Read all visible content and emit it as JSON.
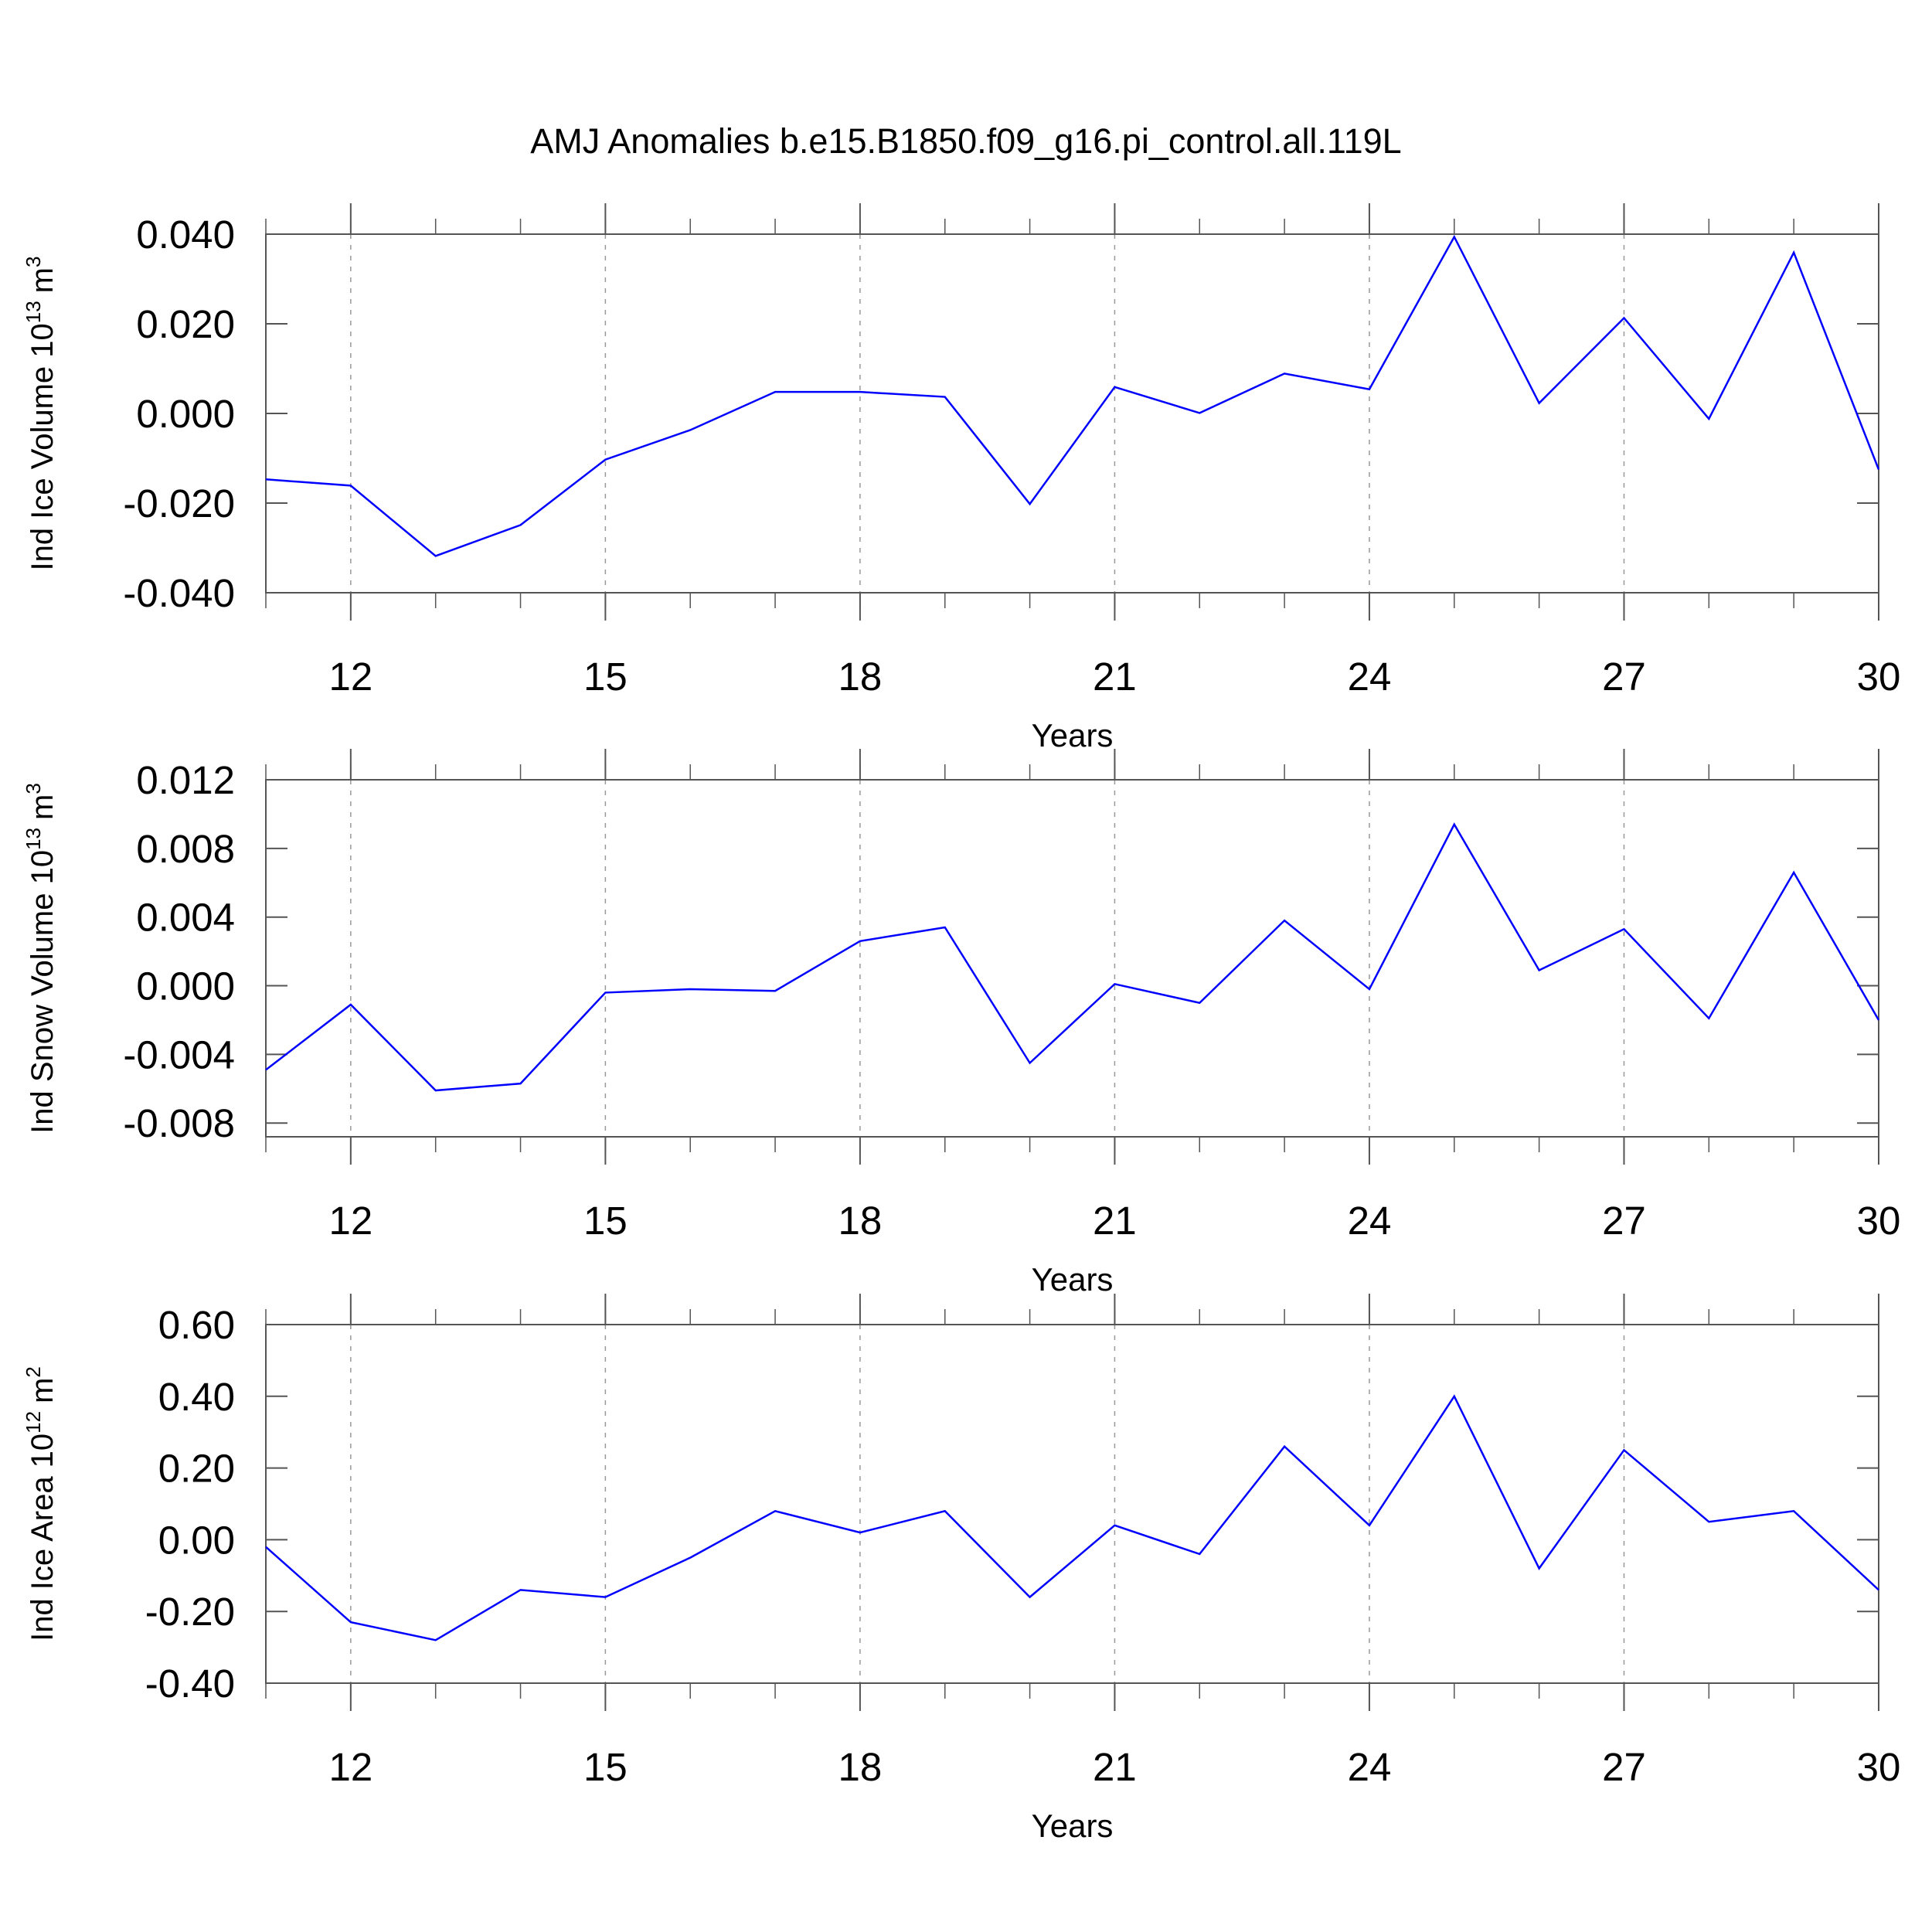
{
  "title": "AMJ Anomalies b.e15.B1850.f09_g16.pi_control.all.119L",
  "chart_data": [
    {
      "type": "line",
      "ylabel": "Ind Ice Volume 10",
      "ylabel_exponent": "13",
      "ylabel_unit": "m",
      "ylabel_unit_exponent": "3",
      "xlabel": "Years",
      "x": [
        11,
        12,
        13,
        14,
        15,
        16,
        17,
        18,
        19,
        20,
        21,
        22,
        23,
        24,
        25,
        26,
        27,
        28,
        29,
        30
      ],
      "values": [
        -0.0147,
        -0.0161,
        -0.0318,
        -0.0249,
        -0.0103,
        -0.0037,
        0.0048,
        0.0048,
        0.0037,
        -0.0202,
        0.0059,
        0.0001,
        0.0089,
        0.0054,
        0.0394,
        0.0023,
        0.0213,
        -0.0012,
        0.0359,
        -0.0125
      ],
      "color": "#0000ff",
      "xlim": [
        11,
        30
      ],
      "xticks": [
        12,
        15,
        18,
        21,
        24,
        27,
        30
      ],
      "ylim": [
        -0.04,
        0.04
      ],
      "yticks": [
        {
          "value": -0.04,
          "label": "-0.040"
        },
        {
          "value": -0.02,
          "label": "-0.020"
        },
        {
          "value": 0,
          "label": "0.000"
        },
        {
          "value": 0.02,
          "label": "0.020"
        },
        {
          "value": 0.04,
          "label": "0.040"
        }
      ],
      "grid_x": true
    },
    {
      "type": "line",
      "ylabel": "Ind Snow Volume 10",
      "ylabel_exponent": "13",
      "ylabel_unit": "m",
      "ylabel_unit_exponent": "3",
      "xlabel": "Years",
      "x": [
        11,
        12,
        13,
        14,
        15,
        16,
        17,
        18,
        19,
        20,
        21,
        22,
        23,
        24,
        25,
        26,
        27,
        28,
        29,
        30
      ],
      "values": [
        -0.0049,
        -0.0011,
        -0.0061,
        -0.0057,
        -0.0004,
        -0.0002,
        -0.0003,
        0.0026,
        0.0034,
        -0.0045,
        0.0001,
        -0.001,
        0.0038,
        -0.0002,
        0.0094,
        0.0009,
        0.0033,
        -0.0019,
        0.0066,
        -0.002
      ],
      "color": "#0000ff",
      "xlim": [
        11,
        30
      ],
      "xticks": [
        12,
        15,
        18,
        21,
        24,
        27,
        30
      ],
      "ylim": [
        -0.0088,
        0.012
      ],
      "yticks": [
        {
          "value": -0.008,
          "label": "-0.008"
        },
        {
          "value": -0.004,
          "label": "-0.004"
        },
        {
          "value": 0,
          "label": "0.000"
        },
        {
          "value": 0.004,
          "label": "0.004"
        },
        {
          "value": 0.008,
          "label": "0.008"
        },
        {
          "value": 0.012,
          "label": "0.012"
        }
      ],
      "grid_x": true
    },
    {
      "type": "line",
      "ylabel": "Ind Ice Area 10",
      "ylabel_exponent": "12",
      "ylabel_unit": "m",
      "ylabel_unit_exponent": "2",
      "xlabel": "Years",
      "x": [
        11,
        12,
        13,
        14,
        15,
        16,
        17,
        18,
        19,
        20,
        21,
        22,
        23,
        24,
        25,
        26,
        27,
        28,
        29,
        30
      ],
      "values": [
        -0.02,
        -0.23,
        -0.28,
        -0.14,
        -0.16,
        -0.05,
        0.08,
        0.02,
        0.08,
        -0.16,
        0.04,
        -0.04,
        0.26,
        0.04,
        0.4,
        -0.08,
        0.25,
        0.05,
        0.08,
        -0.14
      ],
      "color": "#0000ff",
      "xlim": [
        11,
        30
      ],
      "xticks": [
        12,
        15,
        18,
        21,
        24,
        27,
        30
      ],
      "ylim": [
        -0.4,
        0.6
      ],
      "yticks": [
        {
          "value": -0.4,
          "label": "-0.40"
        },
        {
          "value": -0.2,
          "label": "-0.20"
        },
        {
          "value": 0,
          "label": "0.00"
        },
        {
          "value": 0.2,
          "label": "0.20"
        },
        {
          "value": 0.4,
          "label": "0.40"
        },
        {
          "value": 0.6,
          "label": "0.60"
        }
      ],
      "grid_x": true
    }
  ]
}
